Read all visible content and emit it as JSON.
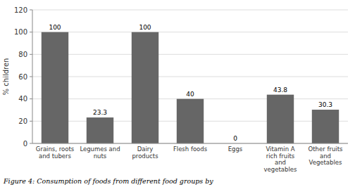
{
  "chart_data": {
    "type": "bar",
    "categories": [
      "Grains, roots\nand tubers",
      "Legumes and\nnuts",
      "Dairy\nproducts",
      "Flesh foods",
      "Eggs",
      "Vitamin A\nrich fruits\nand\nvegetables",
      "Other fruits\nand\nVegetables"
    ],
    "values": [
      100,
      23.3,
      100,
      40,
      0,
      43.8,
      30.3
    ],
    "color": "#666666",
    "data_labels": true,
    "ylabel": "% children",
    "ylim": [
      0,
      120
    ],
    "yticks": [
      0,
      20,
      40,
      60,
      80,
      100,
      120
    ],
    "grid": true,
    "caption": "Figure 4: Consumption of foods from different food groups by"
  }
}
